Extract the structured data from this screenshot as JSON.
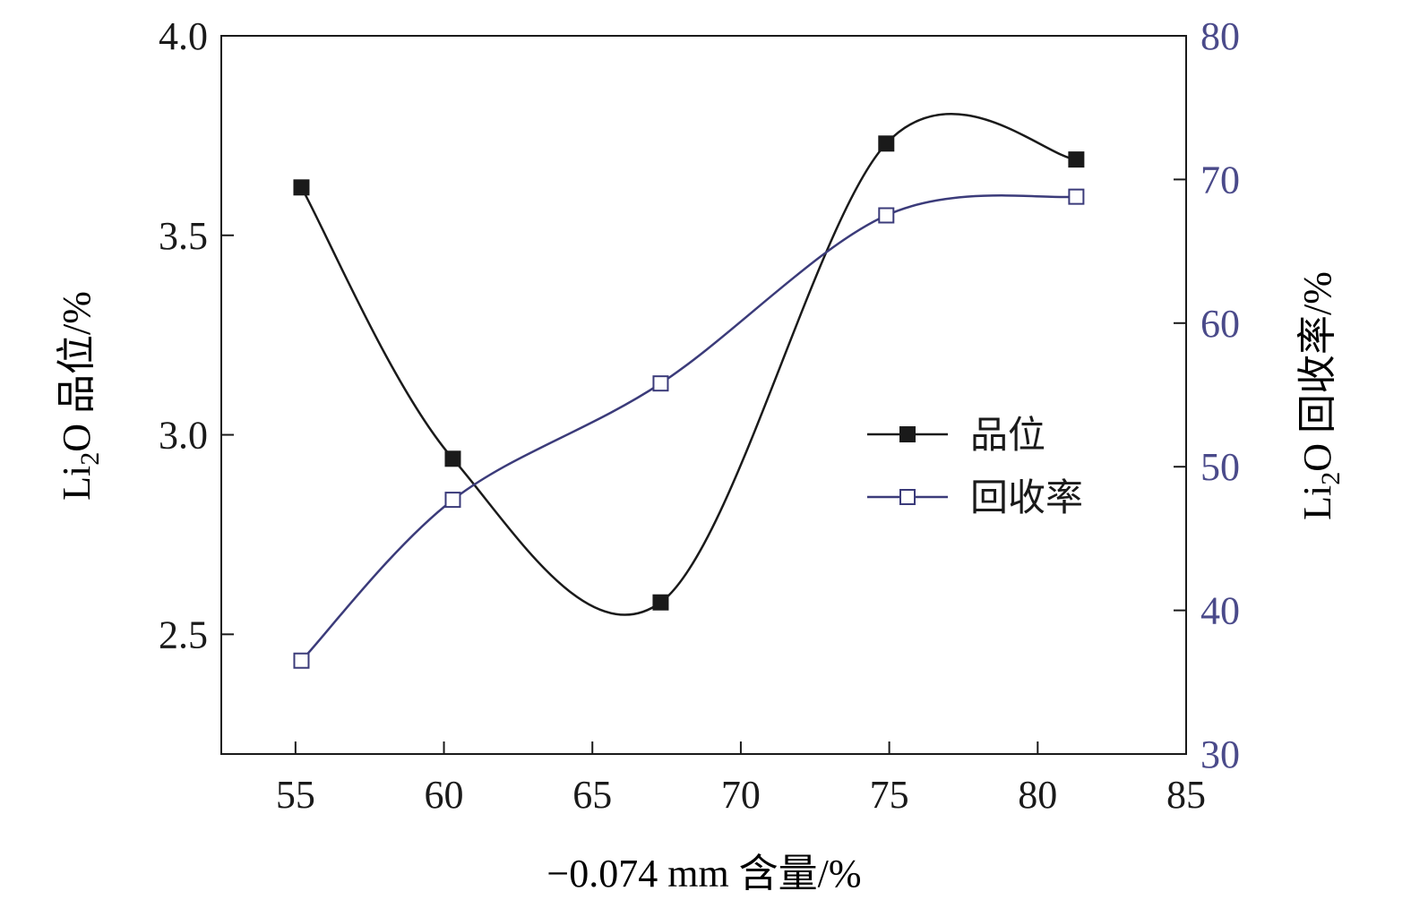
{
  "chart_data": {
    "type": "line",
    "x": [
      55.2,
      60.3,
      67.3,
      74.9,
      81.3
    ],
    "xlim": [
      52.5,
      85
    ],
    "x_ticks": [
      "55",
      "60",
      "65",
      "70",
      "75",
      "80",
      "85"
    ],
    "x_tick_values": [
      55,
      60,
      65,
      70,
      75,
      80,
      85
    ],
    "xlabel": "−0.074 mm 含量/%",
    "ylabel_left": {
      "prefix": "Li",
      "sub": "2",
      "suffix": "O 品位/%"
    },
    "ylabel_right": {
      "prefix": "Li",
      "sub": "2",
      "suffix": "O 回收率/%"
    },
    "ylim_left": [
      2.2,
      4.0
    ],
    "left_ticks": [
      "2.5",
      "3.0",
      "3.5",
      "4.0"
    ],
    "left_tick_values": [
      2.5,
      3.0,
      3.5,
      4.0
    ],
    "ylim_right": [
      30,
      80
    ],
    "right_ticks": [
      "30",
      "40",
      "50",
      "60",
      "70",
      "80"
    ],
    "right_tick_values": [
      30,
      40,
      50,
      60,
      70,
      80
    ],
    "grid": false,
    "legend_position": "center-right",
    "series": [
      {
        "name": "品位",
        "axis": "left",
        "values": [
          3.62,
          2.94,
          2.58,
          3.73,
          3.69
        ],
        "marker": "filled-square",
        "color": "#1a1a1a"
      },
      {
        "name": "回收率",
        "axis": "right",
        "values": [
          36.5,
          47.7,
          55.8,
          67.5,
          68.8
        ],
        "marker": "open-square",
        "color": "#3b3b7a"
      }
    ],
    "right_axis_color": "#4a4a8a"
  }
}
